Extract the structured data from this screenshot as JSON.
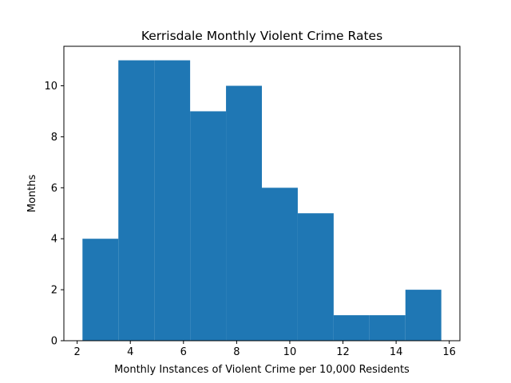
{
  "chart_data": {
    "type": "bar",
    "title": "Kerrisdale Monthly Violent Crime Rates",
    "xlabel": "Monthly Instances of Violent Crime per 10,000 Residents",
    "ylabel": "Months",
    "bin_edges": [
      2.2,
      3.55,
      4.9,
      6.25,
      7.6,
      8.95,
      10.3,
      11.65,
      13.0,
      14.35,
      15.7
    ],
    "values": [
      4,
      11,
      11,
      9,
      10,
      6,
      5,
      1,
      1,
      2
    ],
    "xlim": [
      1.5,
      16.4
    ],
    "ylim": [
      0,
      11.55
    ],
    "xticks": [
      2,
      4,
      6,
      8,
      10,
      12,
      14,
      16
    ],
    "yticks": [
      0,
      2,
      4,
      6,
      8,
      10
    ],
    "bar_color": "#1f77b4",
    "grid": false
  }
}
